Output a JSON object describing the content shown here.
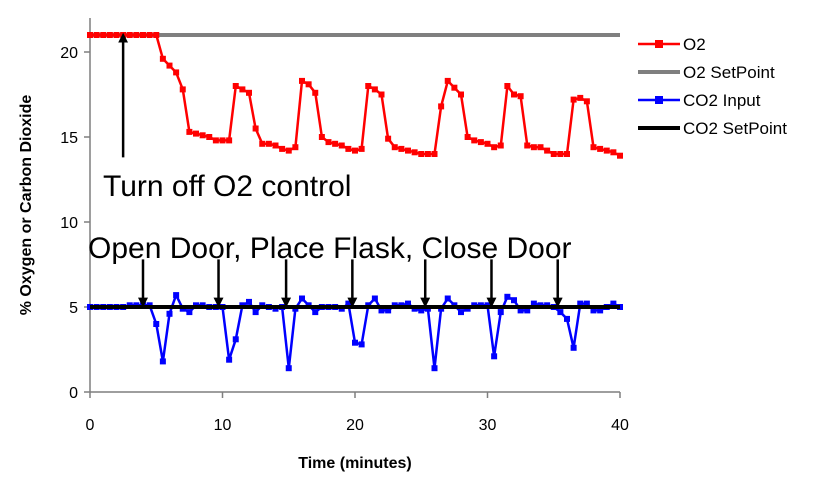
{
  "chart_data": {
    "type": "line",
    "xlabel": "Time (minutes)",
    "ylabel": "% Oxygen or Carbon Dioxide",
    "xlim": [
      0,
      40
    ],
    "ylim": [
      0,
      22
    ],
    "xticks": [
      0,
      10,
      20,
      30,
      40
    ],
    "yticks": [
      0,
      5,
      10,
      15,
      20
    ],
    "grid": false,
    "legend_position": "right",
    "series": [
      {
        "name": "O2",
        "color": "#ff0000",
        "marker": "square",
        "x": [
          0,
          0.5,
          1,
          1.5,
          2,
          2.5,
          3,
          3.5,
          4,
          4.5,
          5,
          5.5,
          6,
          6.5,
          7,
          7.5,
          8,
          8.5,
          9,
          9.5,
          10,
          10.5,
          11,
          11.5,
          12,
          12.5,
          13,
          13.5,
          14,
          14.5,
          15,
          15.5,
          16,
          16.5,
          17,
          17.5,
          18,
          18.5,
          19,
          19.5,
          20,
          20.5,
          21,
          21.5,
          22,
          22.5,
          23,
          23.5,
          24,
          24.5,
          25,
          25.5,
          26,
          26.5,
          27,
          27.5,
          28,
          28.5,
          29,
          29.5,
          30,
          30.5,
          31,
          31.5,
          32,
          32.5,
          33,
          33.5,
          34,
          34.5,
          35,
          35.5,
          36,
          36.5,
          37,
          37.5,
          38,
          38.5,
          39,
          39.5,
          40
        ],
        "y": [
          21,
          21,
          21,
          21,
          21,
          21,
          21,
          21,
          21,
          21,
          21,
          19.6,
          19.2,
          18.8,
          17.8,
          15.3,
          15.2,
          15.1,
          15,
          14.8,
          14.8,
          14.8,
          18,
          17.8,
          17.6,
          15.5,
          14.6,
          14.6,
          14.5,
          14.3,
          14.2,
          14.4,
          18.3,
          18.1,
          17.6,
          15,
          14.7,
          14.6,
          14.5,
          14.3,
          14.2,
          14.3,
          18,
          17.8,
          17.5,
          14.9,
          14.4,
          14.3,
          14.2,
          14.1,
          14,
          14,
          14,
          16.8,
          18.3,
          17.9,
          17.5,
          15,
          14.8,
          14.7,
          14.6,
          14.4,
          14.5,
          18,
          17.5,
          17.4,
          14.5,
          14.4,
          14.4,
          14.2,
          14,
          14,
          14,
          17.2,
          17.3,
          17.1,
          14.4,
          14.3,
          14.2,
          14.1,
          13.9
        ]
      },
      {
        "name": "O2 SetPoint",
        "color": "#7f7f7f",
        "marker": "none",
        "x": [
          0,
          40
        ],
        "y": [
          21,
          21
        ]
      },
      {
        "name": "CO2 Input",
        "color": "#0000ff",
        "marker": "square",
        "x": [
          0,
          0.5,
          1,
          1.5,
          2,
          2.5,
          3,
          3.5,
          4,
          4.5,
          5,
          5.5,
          6,
          6.5,
          7,
          7.5,
          8,
          8.5,
          9,
          9.5,
          10,
          10.5,
          11,
          11.5,
          12,
          12.5,
          13,
          13.5,
          14,
          14.5,
          15,
          15.5,
          16,
          16.5,
          17,
          17.5,
          18,
          18.5,
          19,
          19.5,
          20,
          20.5,
          21,
          21.5,
          22,
          22.5,
          23,
          23.5,
          24,
          24.5,
          25,
          25.5,
          26,
          26.5,
          27,
          27.5,
          28,
          28.5,
          29,
          29.5,
          30,
          30.5,
          31,
          31.5,
          32,
          32.5,
          33,
          33.5,
          34,
          34.5,
          35,
          35.5,
          36,
          36.5,
          37,
          37.5,
          38,
          38.5,
          39,
          39.5,
          40
        ],
        "y": [
          5,
          5,
          5,
          5,
          5,
          5,
          5.1,
          5.1,
          5.1,
          5.1,
          4,
          1.8,
          4.6,
          5.7,
          4.9,
          4.7,
          5.1,
          5.1,
          5,
          5,
          5,
          1.9,
          3.1,
          5.1,
          5.3,
          4.7,
          5.1,
          5,
          4.9,
          5,
          1.4,
          4.9,
          5.5,
          5.1,
          4.7,
          5,
          5,
          5,
          4.9,
          5.2,
          2.9,
          2.8,
          5.1,
          5.5,
          4.8,
          4.8,
          5.1,
          5.1,
          5.2,
          4.9,
          4.8,
          4.9,
          1.4,
          4.9,
          5.5,
          5.1,
          4.7,
          4.9,
          5.1,
          5.1,
          5.1,
          2.1,
          4.7,
          5.6,
          5.4,
          4.8,
          4.8,
          5.2,
          5.1,
          5.1,
          5,
          4.7,
          4.3,
          2.6,
          5.2,
          5.2,
          4.8,
          4.8,
          5,
          5.2,
          5
        ]
      },
      {
        "name": "CO2 SetPoint",
        "color": "#000000",
        "marker": "none",
        "x": [
          0,
          40
        ],
        "y": [
          5,
          5
        ]
      }
    ],
    "annotations": [
      {
        "text": "Turn off O2 control",
        "arrows": [
          {
            "x": 2.5,
            "y_from": 13.8,
            "y_to": 20.9
          }
        ]
      },
      {
        "text": "Open Door, Place Flask, Close Door",
        "arrows": [
          {
            "x": 4,
            "y_from": 7.8,
            "y_to": 5.2
          },
          {
            "x": 9.7,
            "y_from": 7.8,
            "y_to": 5.2
          },
          {
            "x": 14.8,
            "y_from": 7.8,
            "y_to": 5.2
          },
          {
            "x": 19.8,
            "y_from": 7.8,
            "y_to": 5.2
          },
          {
            "x": 25.3,
            "y_from": 7.8,
            "y_to": 5.2
          },
          {
            "x": 30.3,
            "y_from": 7.8,
            "y_to": 5.2
          },
          {
            "x": 35.3,
            "y_from": 7.8,
            "y_to": 5.2
          }
        ]
      }
    ]
  }
}
